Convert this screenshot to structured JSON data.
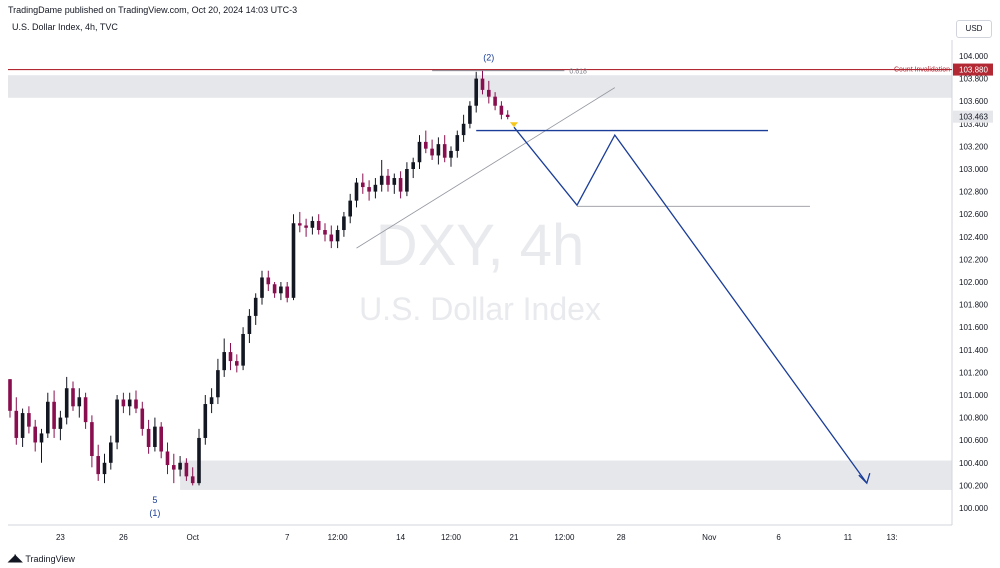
{
  "header": {
    "published": "TradingDame published on TradingView.com, Oct 20, 2024 14:03 UTC-3",
    "symbol_line": "U.S. Dollar Index, 4h, TVC",
    "currency": "USD"
  },
  "footer": {
    "logo_text": "TradingView"
  },
  "colors": {
    "up": "#131722",
    "down": "#880e4f",
    "invalidation": "#b22833",
    "projection": "#1a3d99",
    "zone": "#e6e7eb",
    "grid_text": "#131722",
    "axis_border": "#d1d4dc",
    "watermark": "#e9eaee"
  },
  "watermark": {
    "line1": "DXY, 4h",
    "line2": "U.S. Dollar Index"
  },
  "chart_data": {
    "type": "candlestick",
    "symbol": "DXY",
    "timeframe": "4h",
    "ylim": [
      99.9,
      104.2
    ],
    "xlim": [
      0,
      142
    ],
    "y_ticks": [
      "104.000",
      "103.800",
      "103.600",
      "103.400",
      "103.200",
      "103.000",
      "102.800",
      "102.600",
      "102.400",
      "102.200",
      "102.000",
      "101.800",
      "101.600",
      "101.400",
      "101.200",
      "101.000",
      "100.800",
      "100.600",
      "100.400",
      "100.200",
      "100.000"
    ],
    "x_tick_labels": [
      {
        "bar": 8,
        "label": "23"
      },
      {
        "bar": 18,
        "label": "26"
      },
      {
        "bar": 29,
        "label": "Oct"
      },
      {
        "bar": 44,
        "label": "7"
      },
      {
        "bar": 52,
        "label": "12:00"
      },
      {
        "bar": 62,
        "label": "14"
      },
      {
        "bar": 70,
        "label": "12:00"
      },
      {
        "bar": 80,
        "label": "21"
      },
      {
        "bar": 88,
        "label": "12:00"
      },
      {
        "bar": 97,
        "label": "28"
      },
      {
        "bar": 111,
        "label": "Nov"
      },
      {
        "bar": 122,
        "label": "6"
      },
      {
        "bar": 133,
        "label": "11"
      },
      {
        "bar": 140,
        "label": "13:"
      }
    ],
    "candles": [
      [
        101.14,
        101.14,
        100.8,
        100.86
      ],
      [
        100.86,
        100.98,
        100.56,
        100.62
      ],
      [
        100.62,
        100.88,
        100.54,
        100.84
      ],
      [
        100.84,
        100.9,
        100.66,
        100.72
      ],
      [
        100.72,
        100.78,
        100.5,
        100.58
      ],
      [
        100.58,
        100.7,
        100.4,
        100.66
      ],
      [
        100.66,
        101.02,
        100.62,
        100.94
      ],
      [
        100.94,
        101.04,
        100.62,
        100.7
      ],
      [
        100.7,
        100.86,
        100.6,
        100.8
      ],
      [
        100.8,
        101.16,
        100.74,
        101.06
      ],
      [
        101.06,
        101.12,
        100.86,
        100.9
      ],
      [
        100.9,
        101.06,
        100.8,
        100.98
      ],
      [
        100.98,
        101.02,
        100.7,
        100.76
      ],
      [
        100.76,
        100.82,
        100.36,
        100.46
      ],
      [
        100.46,
        100.56,
        100.24,
        100.3
      ],
      [
        100.3,
        100.48,
        100.22,
        100.4
      ],
      [
        100.4,
        100.64,
        100.34,
        100.58
      ],
      [
        100.58,
        101.0,
        100.52,
        100.96
      ],
      [
        100.96,
        101.02,
        100.84,
        100.9
      ],
      [
        100.9,
        101.02,
        100.82,
        100.96
      ],
      [
        100.96,
        101.04,
        100.84,
        100.88
      ],
      [
        100.88,
        100.94,
        100.64,
        100.7
      ],
      [
        100.7,
        100.78,
        100.48,
        100.54
      ],
      [
        100.54,
        100.8,
        100.5,
        100.72
      ],
      [
        100.72,
        100.76,
        100.44,
        100.5
      ],
      [
        100.5,
        100.58,
        100.3,
        100.38
      ],
      [
        100.38,
        100.48,
        100.22,
        100.34
      ],
      [
        100.34,
        100.46,
        100.28,
        100.4
      ],
      [
        100.4,
        100.44,
        100.24,
        100.28
      ],
      [
        100.28,
        100.36,
        100.2,
        100.22
      ],
      [
        100.22,
        100.7,
        100.2,
        100.62
      ],
      [
        100.62,
        101.0,
        100.56,
        100.92
      ],
      [
        100.92,
        101.06,
        100.84,
        100.98
      ],
      [
        100.98,
        101.32,
        100.92,
        101.22
      ],
      [
        101.22,
        101.5,
        101.16,
        101.38
      ],
      [
        101.38,
        101.46,
        101.22,
        101.3
      ],
      [
        101.3,
        101.36,
        101.2,
        101.26
      ],
      [
        101.26,
        101.6,
        101.22,
        101.54
      ],
      [
        101.54,
        101.76,
        101.46,
        101.7
      ],
      [
        101.7,
        101.9,
        101.62,
        101.86
      ],
      [
        101.86,
        102.1,
        101.8,
        102.04
      ],
      [
        102.04,
        102.1,
        101.92,
        101.98
      ],
      [
        101.98,
        102.0,
        101.86,
        101.9
      ],
      [
        101.9,
        102.0,
        101.84,
        101.96
      ],
      [
        101.96,
        102.0,
        101.82,
        101.86
      ],
      [
        101.86,
        102.6,
        101.84,
        102.52
      ],
      [
        102.52,
        102.62,
        102.44,
        102.5
      ],
      [
        102.5,
        102.56,
        102.4,
        102.48
      ],
      [
        102.48,
        102.58,
        102.42,
        102.54
      ],
      [
        102.54,
        102.6,
        102.42,
        102.46
      ],
      [
        102.46,
        102.52,
        102.36,
        102.42
      ],
      [
        102.42,
        102.5,
        102.3,
        102.36
      ],
      [
        102.36,
        102.5,
        102.3,
        102.46
      ],
      [
        102.46,
        102.62,
        102.4,
        102.58
      ],
      [
        102.58,
        102.78,
        102.52,
        102.72
      ],
      [
        102.72,
        102.92,
        102.66,
        102.88
      ],
      [
        102.88,
        102.96,
        102.78,
        102.84
      ],
      [
        102.84,
        102.9,
        102.72,
        102.8
      ],
      [
        102.8,
        102.92,
        102.74,
        102.86
      ],
      [
        102.86,
        103.08,
        102.8,
        102.94
      ],
      [
        102.94,
        103.0,
        102.8,
        102.86
      ],
      [
        102.86,
        102.96,
        102.78,
        102.92
      ],
      [
        102.92,
        102.98,
        102.74,
        102.8
      ],
      [
        102.8,
        103.06,
        102.76,
        103.0
      ],
      [
        103.0,
        103.1,
        102.92,
        103.06
      ],
      [
        103.06,
        103.3,
        103.0,
        103.24
      ],
      [
        103.24,
        103.34,
        103.14,
        103.18
      ],
      [
        103.18,
        103.26,
        103.08,
        103.12
      ],
      [
        103.12,
        103.28,
        103.04,
        103.22
      ],
      [
        103.22,
        103.3,
        103.06,
        103.1
      ],
      [
        103.1,
        103.2,
        103.02,
        103.16
      ],
      [
        103.16,
        103.34,
        103.1,
        103.3
      ],
      [
        103.3,
        103.48,
        103.24,
        103.4
      ],
      [
        103.4,
        103.6,
        103.36,
        103.56
      ],
      [
        103.56,
        103.86,
        103.5,
        103.8
      ],
      [
        103.8,
        103.87,
        103.66,
        103.7
      ],
      [
        103.7,
        103.78,
        103.58,
        103.64
      ],
      [
        103.64,
        103.68,
        103.52,
        103.56
      ],
      [
        103.56,
        103.6,
        103.44,
        103.48
      ],
      [
        103.48,
        103.52,
        103.44,
        103.46
      ]
    ],
    "levels": [
      {
        "name": "count-invalidation",
        "price": 103.88,
        "label": "Count Invalidation",
        "price_label": "103.880"
      },
      {
        "name": "last-price",
        "price": 103.463,
        "price_label": "103.463"
      },
      {
        "name": "fib-0618",
        "price": 103.87,
        "label": "0.618"
      },
      {
        "name": "breakdown-level",
        "price": 103.34
      },
      {
        "name": "target-level",
        "price": 102.67
      }
    ],
    "zones": [
      {
        "name": "resistance-zone",
        "from": 103.63,
        "to": 103.83
      },
      {
        "name": "support-zone",
        "from": 100.16,
        "to": 100.42
      }
    ],
    "trendline": [
      [
        55,
        102.3
      ],
      [
        96,
        103.72
      ]
    ],
    "projection": [
      [
        80,
        103.37
      ],
      [
        90,
        102.68
      ],
      [
        96,
        103.3
      ],
      [
        136,
        100.22
      ]
    ],
    "wave_labels": [
      {
        "bar": 76,
        "price": 103.87,
        "text": "(2)",
        "pos": "above"
      },
      {
        "bar": 23,
        "price": 100.22,
        "text": "5",
        "pos": "below"
      },
      {
        "bar": 23,
        "price": 100.22,
        "text": "(1)",
        "pos": "below2"
      }
    ]
  }
}
